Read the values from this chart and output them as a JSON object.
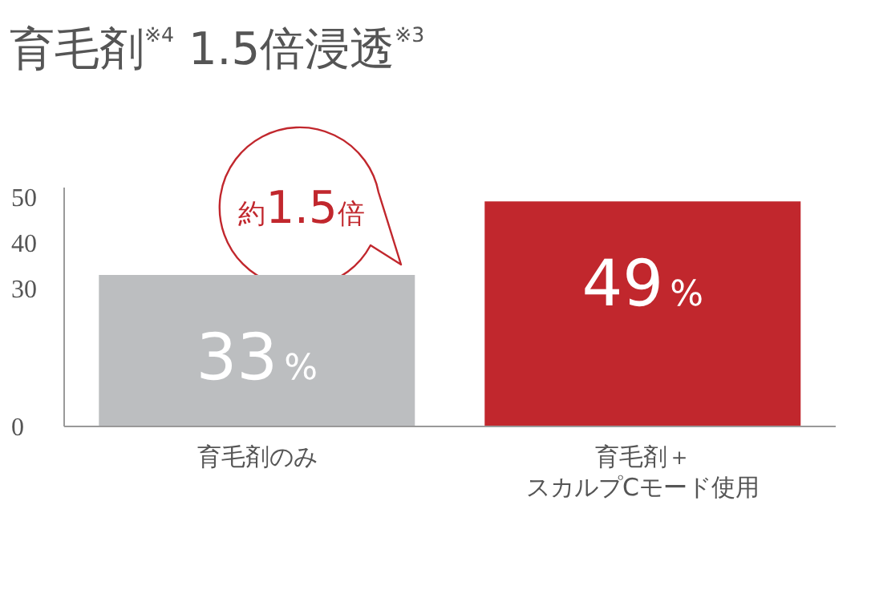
{
  "chart_data": {
    "type": "bar",
    "title": "育毛剤$^{※4}$ 1.5倍浸透$^{※3}$",
    "categories": [
      "育毛剤のみ",
      "育毛剤＋スカルプCモード使用"
    ],
    "values": [
      33,
      49
    ],
    "colors": [
      "#bcbec0",
      "#c1272d"
    ],
    "value_labels": [
      "33%",
      "49%"
    ],
    "ylim": [
      0,
      52
    ],
    "yticks": [
      0,
      30,
      40,
      50
    ],
    "annotations": [
      "約1.5倍"
    ]
  }
}
